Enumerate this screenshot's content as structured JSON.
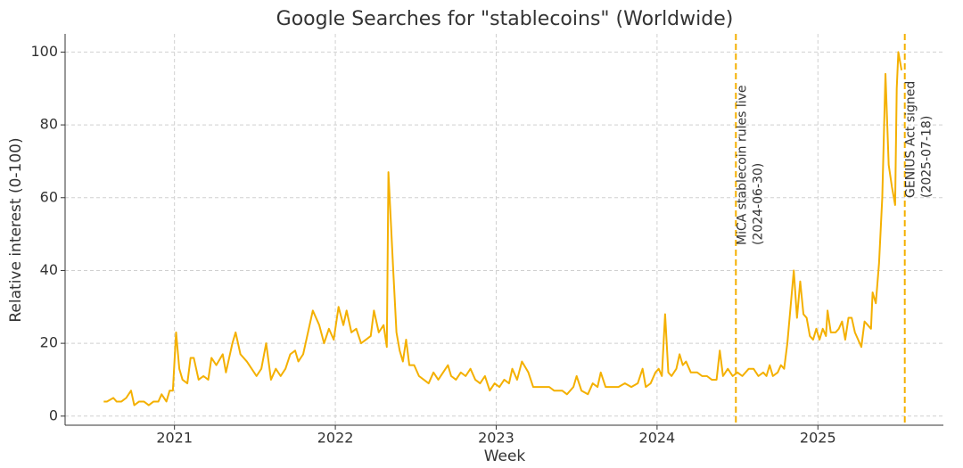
{
  "chart_data": {
    "type": "line",
    "title": "Google Searches for \"stablecoins\" (Worldwide)",
    "x_label": "Week",
    "y_label": "Relative interest (0-100)",
    "color": "#f4b000",
    "grid": true,
    "xlim": [
      2020.32,
      2025.78
    ],
    "ylim": [
      -2.5,
      105
    ],
    "xticks": [
      2021,
      2022,
      2023,
      2024,
      2025
    ],
    "yticks": [
      0,
      20,
      40,
      60,
      80,
      100
    ],
    "x": [
      2020.56,
      2020.58,
      2020.62,
      2020.64,
      2020.67,
      2020.7,
      2020.73,
      2020.75,
      2020.78,
      2020.81,
      2020.84,
      2020.87,
      2020.9,
      2020.92,
      2020.95,
      2020.97,
      2020.99,
      2021.01,
      2021.03,
      2021.05,
      2021.08,
      2021.1,
      2021.12,
      2021.15,
      2021.18,
      2021.21,
      2021.23,
      2021.26,
      2021.3,
      2021.32,
      2021.36,
      2021.38,
      2021.41,
      2021.45,
      2021.48,
      2021.51,
      2021.54,
      2021.57,
      2021.6,
      2021.63,
      2021.66,
      2021.69,
      2021.72,
      2021.75,
      2021.77,
      2021.8,
      2021.83,
      2021.86,
      2021.9,
      2021.93,
      2021.96,
      2021.99,
      2022.02,
      2022.05,
      2022.07,
      2022.1,
      2022.13,
      2022.16,
      2022.19,
      2022.22,
      2022.24,
      2022.27,
      2022.3,
      2022.32,
      2022.33,
      2022.36,
      2022.38,
      2022.4,
      2022.42,
      2022.44,
      2022.46,
      2022.49,
      2022.52,
      2022.55,
      2022.58,
      2022.61,
      2022.64,
      2022.67,
      2022.7,
      2022.72,
      2022.75,
      2022.78,
      2022.81,
      2022.84,
      2022.87,
      2022.9,
      2022.93,
      2022.96,
      2022.99,
      2023.02,
      2023.05,
      2023.08,
      2023.1,
      2023.13,
      2023.16,
      2023.2,
      2023.23,
      2023.28,
      2023.33,
      2023.36,
      2023.41,
      2023.44,
      2023.48,
      2023.5,
      2023.53,
      2023.57,
      2023.6,
      2023.63,
      2023.65,
      2023.68,
      2023.72,
      2023.76,
      2023.8,
      2023.84,
      2023.88,
      2023.91,
      2023.93,
      2023.96,
      2023.99,
      2024.01,
      2024.03,
      2024.05,
      2024.07,
      2024.09,
      2024.12,
      2024.14,
      2024.16,
      2024.18,
      2024.21,
      2024.25,
      2024.28,
      2024.31,
      2024.34,
      2024.37,
      2024.39,
      2024.41,
      2024.44,
      2024.47,
      2024.5,
      2024.53,
      2024.57,
      2024.6,
      2024.63,
      2024.66,
      2024.68,
      2024.7,
      2024.72,
      2024.75,
      2024.77,
      2024.79,
      2024.81,
      2024.83,
      2024.85,
      2024.87,
      2024.89,
      2024.91,
      2024.93,
      2024.95,
      2024.97,
      2024.99,
      2025.01,
      2025.03,
      2025.05,
      2025.06,
      2025.08,
      2025.11,
      2025.13,
      2025.15,
      2025.17,
      2025.19,
      2025.21,
      2025.23,
      2025.25,
      2025.27,
      2025.29,
      2025.31,
      2025.33,
      2025.34,
      2025.36,
      2025.38,
      2025.4,
      2025.42,
      2025.44,
      2025.46,
      2025.48,
      2025.49,
      2025.5,
      2025.52
    ],
    "values": [
      4,
      4,
      5,
      4,
      4,
      5,
      7,
      3,
      4,
      4,
      3,
      4,
      4,
      6,
      4,
      7,
      7,
      23,
      13,
      10,
      9,
      16,
      16,
      10,
      11,
      10,
      16,
      14,
      17,
      12,
      20,
      23,
      17,
      15,
      13,
      11,
      13,
      20,
      10,
      13,
      11,
      13,
      17,
      18,
      15,
      17,
      23,
      29,
      25,
      20,
      24,
      21,
      30,
      25,
      29,
      23,
      24,
      20,
      21,
      22,
      29,
      23,
      25,
      19,
      67,
      40,
      23,
      18,
      15,
      21,
      14,
      14,
      11,
      10,
      9,
      12,
      10,
      12,
      14,
      11,
      10,
      12,
      11,
      13,
      10,
      9,
      11,
      7,
      9,
      8,
      10,
      9,
      13,
      10,
      15,
      12,
      8,
      8,
      8,
      7,
      7,
      6,
      8,
      11,
      7,
      6,
      9,
      8,
      12,
      8,
      8,
      8,
      9,
      8,
      9,
      13,
      8,
      9,
      12,
      13,
      11,
      28,
      12,
      11,
      13,
      17,
      14,
      15,
      12,
      12,
      11,
      11,
      10,
      10,
      18,
      11,
      13,
      11,
      12,
      11,
      13,
      13,
      11,
      12,
      11,
      14,
      11,
      12,
      14,
      13,
      20,
      30,
      40,
      27,
      37,
      28,
      27,
      22,
      21,
      24,
      21,
      24,
      22,
      29,
      23,
      23,
      24,
      26,
      21,
      27,
      27,
      23,
      21,
      19,
      26,
      25,
      24,
      34,
      31,
      42,
      60,
      94,
      69,
      63,
      58,
      90,
      100,
      95
    ],
    "annotations": [
      {
        "x": 2024.49,
        "lines": [
          "MiCA stablecoin rules live",
          "(2024-06-30)"
        ]
      },
      {
        "x": 2025.54,
        "lines": [
          "GENIUS Act signed",
          "(2025-07-18)"
        ]
      }
    ]
  }
}
